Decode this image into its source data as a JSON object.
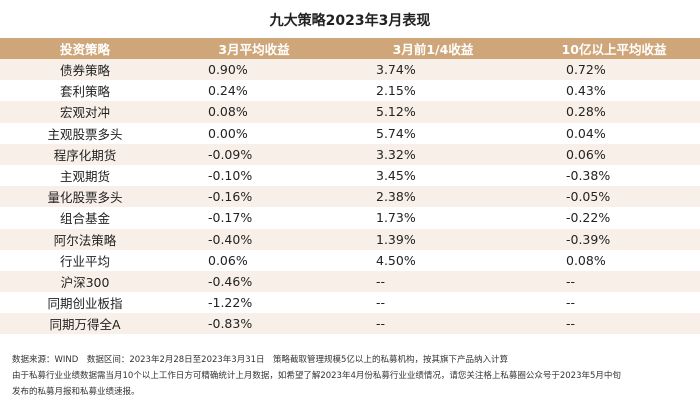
{
  "title": "九大策略2023年3月表现",
  "table": {
    "header": [
      "投资策略",
      "3月平均收益",
      "3月前1/4收益",
      "10亿以上平均收益"
    ],
    "rows": [
      [
        "债券策略",
        "0.90%",
        "3.74%",
        "0.72%"
      ],
      [
        "套利策略",
        "0.24%",
        "2.15%",
        "0.43%"
      ],
      [
        "宏观对冲",
        "0.08%",
        "5.12%",
        "0.28%"
      ],
      [
        "主观股票多头",
        "0.00%",
        "5.74%",
        "0.04%"
      ],
      [
        "程序化期货",
        "-0.09%",
        "3.32%",
        "0.06%"
      ],
      [
        "主观期货",
        "-0.10%",
        "3.45%",
        "-0.38%"
      ],
      [
        "量化股票多头",
        "-0.16%",
        "2.38%",
        "-0.05%"
      ],
      [
        "组合基金",
        "-0.17%",
        "1.73%",
        "-0.22%"
      ],
      [
        "阿尔法策略",
        "-0.40%",
        "1.39%",
        "-0.39%"
      ],
      [
        "行业平均",
        "0.06%",
        "4.50%",
        "0.08%"
      ],
      [
        "沪深300",
        "-0.46%",
        "--",
        "--"
      ],
      [
        "同期创业板指",
        "-1.22%",
        "--",
        "--"
      ],
      [
        "同期万得全A",
        "-0.83%",
        "--",
        "--"
      ]
    ]
  },
  "notes": [
    "数据来源：WIND　数据区间：2023年2月28日至2023年3月31日　策略截取管理规模5亿以上的私募机构，按其旗下产品纳入计算",
    "由于私募行业业绩数据需当月10个以上工作日方可精确统计上月数据，如希望了解2023年4月份私募行业业绩情况，请您关注格上私募圈公众号于2023年5月中旬",
    "发布的私募月报和私募业绩速报。"
  ]
}
